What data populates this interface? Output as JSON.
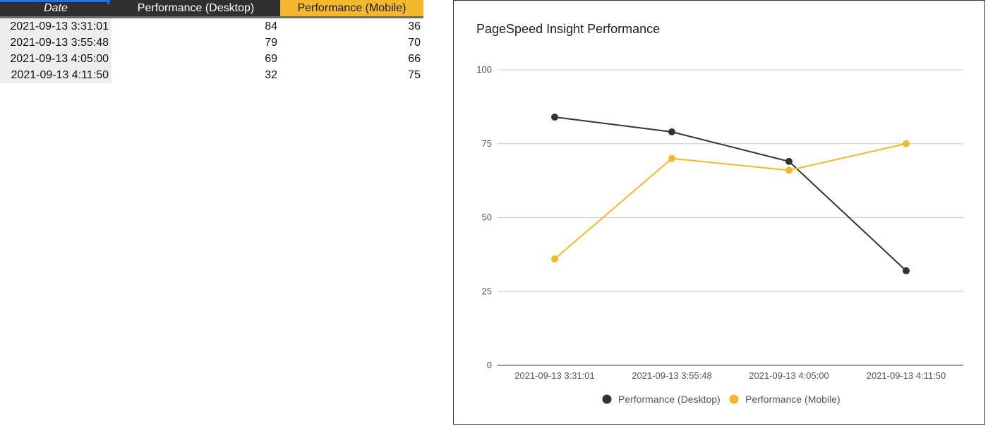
{
  "sheet": {
    "headers": {
      "date": "Date",
      "desktop": "Performance (Desktop)",
      "mobile": "Performance (Mobile)"
    },
    "rows": [
      {
        "date": "2021-09-13 3:31:01",
        "desktop": "84",
        "mobile": "36"
      },
      {
        "date": "2021-09-13 3:55:48",
        "desktop": "79",
        "mobile": "70"
      },
      {
        "date": "2021-09-13 4:05:00",
        "desktop": "69",
        "mobile": "66"
      },
      {
        "date": "2021-09-13 4:11:50",
        "desktop": "32",
        "mobile": "75"
      }
    ]
  },
  "chart_data": {
    "type": "line",
    "title": "PageSpeed Insight Performance",
    "xlabel": "",
    "ylabel": "",
    "categories": [
      "2021-09-13 3:31:01",
      "2021-09-13 3:55:48",
      "2021-09-13 4:05:00",
      "2021-09-13 4:11:50"
    ],
    "series": [
      {
        "name": "Performance (Desktop)",
        "values": [
          84,
          79,
          69,
          32
        ],
        "color": "#333333"
      },
      {
        "name": "Performance (Mobile)",
        "values": [
          36,
          70,
          66,
          75
        ],
        "color": "#f5b72b"
      }
    ],
    "ylim": [
      0,
      100
    ],
    "yticks": [
      0,
      25,
      50,
      75,
      100
    ],
    "grid": true,
    "legend": "bottom"
  }
}
